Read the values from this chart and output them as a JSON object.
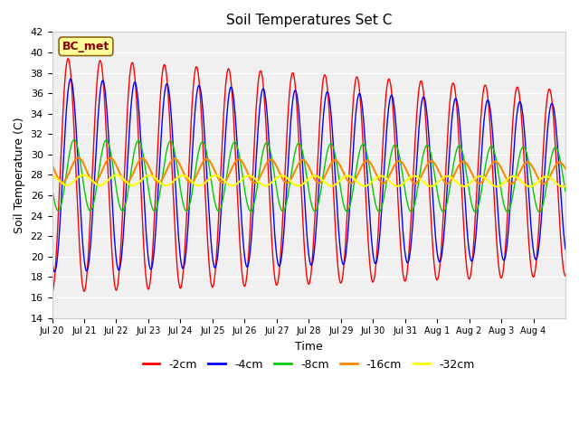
{
  "title": "Soil Temperatures Set C",
  "xlabel": "Time",
  "ylabel": "Soil Temperature (C)",
  "ylim": [
    14,
    42
  ],
  "yticks": [
    14,
    16,
    18,
    20,
    22,
    24,
    26,
    28,
    30,
    32,
    34,
    36,
    38,
    40,
    42
  ],
  "legend_label": "BC_met",
  "line_colors": {
    "-2cm": "#ff0000",
    "-4cm": "#0000ff",
    "-8cm": "#00cc00",
    "-16cm": "#ff8800",
    "-32cm": "#ffff00"
  },
  "xtick_labels": [
    "Jul 20",
    "Jul 21",
    "Jul 22",
    "Jul 23",
    "Jul 24",
    "Jul 25",
    "Jul 26",
    "Jul 27",
    "Jul 28",
    "Jul 29",
    "Jul 30",
    "Jul 31",
    "Aug 1",
    "Aug 2",
    "Aug 3",
    "Aug 4"
  ],
  "plot_bg_color": "#f0f0f0"
}
